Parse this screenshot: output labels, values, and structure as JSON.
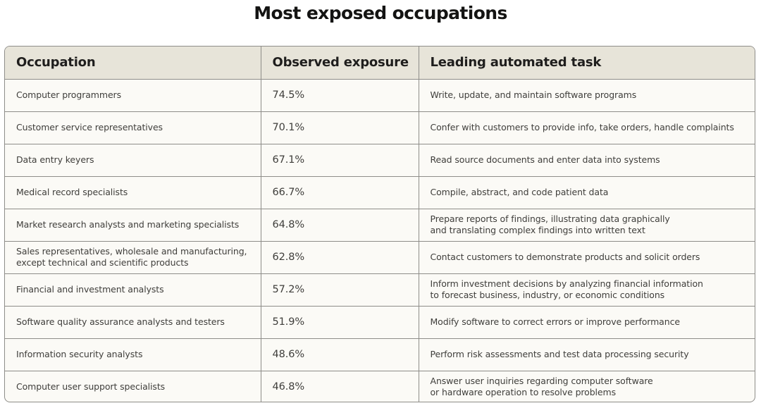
{
  "title": "Most exposed occupations",
  "table": {
    "headers": [
      "Occupation",
      "Observed exposure",
      "Leading automated task"
    ],
    "rows": [
      {
        "occupation": "Computer programmers",
        "exposure": "74.5%",
        "task": "Write, update, and maintain software programs"
      },
      {
        "occupation": "Customer service representatives",
        "exposure": "70.1%",
        "task": "Confer with customers to provide info, take orders, handle complaints"
      },
      {
        "occupation": "Data entry keyers",
        "exposure": "67.1%",
        "task": "Read source documents and enter data into systems"
      },
      {
        "occupation": "Medical record specialists",
        "exposure": "66.7%",
        "task": "Compile, abstract, and code patient data"
      },
      {
        "occupation": "Market research analysts and marketing specialists",
        "exposure": "64.8%",
        "task": "Prepare reports of findings, illustrating data graphically\nand translating complex findings into written text"
      },
      {
        "occupation": "Sales representatives, wholesale and manufacturing, except technical and scientific products",
        "exposure": "62.8%",
        "task": "Contact customers to demonstrate products and solicit orders"
      },
      {
        "occupation": "Financial and investment analysts",
        "exposure": "57.2%",
        "task": "Inform investment decisions by analyzing financial information\nto forecast business, industry, or economic conditions"
      },
      {
        "occupation": "Software quality assurance analysts and testers",
        "exposure": "51.9%",
        "task": "Modify software to correct errors or improve performance"
      },
      {
        "occupation": "Information security analysts",
        "exposure": "48.6%",
        "task": "Perform risk assessments and test data processing security"
      },
      {
        "occupation": "Computer user support specialists",
        "exposure": "46.8%",
        "task": "Answer user inquiries regarding computer software\nor hardware operation to resolve problems"
      }
    ]
  }
}
